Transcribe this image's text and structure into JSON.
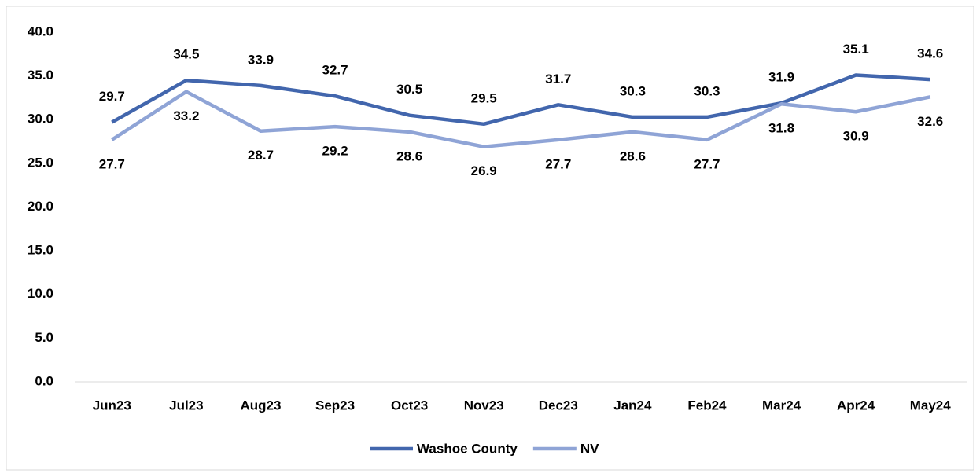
{
  "chart_data": {
    "type": "line",
    "categories": [
      "Jun23",
      "Jul23",
      "Aug23",
      "Sep23",
      "Oct23",
      "Nov23",
      "Dec23",
      "Jan24",
      "Feb24",
      "Mar24",
      "Apr24",
      "May24"
    ],
    "series": [
      {
        "name": "Washoe County",
        "color": "#4266ad",
        "values": [
          29.7,
          34.5,
          33.9,
          32.7,
          30.5,
          29.5,
          31.7,
          30.3,
          30.3,
          31.9,
          35.1,
          34.6
        ]
      },
      {
        "name": "NV",
        "color": "#8fa4d6",
        "values": [
          27.7,
          33.2,
          28.7,
          29.2,
          28.6,
          26.9,
          27.7,
          28.6,
          27.7,
          31.8,
          30.9,
          32.6
        ]
      }
    ],
    "ylim": [
      0,
      40
    ],
    "yticks": [
      {
        "value": 0,
        "label": "0.0"
      },
      {
        "value": 5,
        "label": "5.0"
      },
      {
        "value": 10,
        "label": "10.0"
      },
      {
        "value": 15,
        "label": "15.0"
      },
      {
        "value": 20,
        "label": "20.0"
      },
      {
        "value": 25,
        "label": "25.0"
      },
      {
        "value": 30,
        "label": "30.0"
      },
      {
        "value": 35,
        "label": "35.0"
      },
      {
        "value": 40,
        "label": "40.0"
      }
    ],
    "legend": "bottom"
  }
}
